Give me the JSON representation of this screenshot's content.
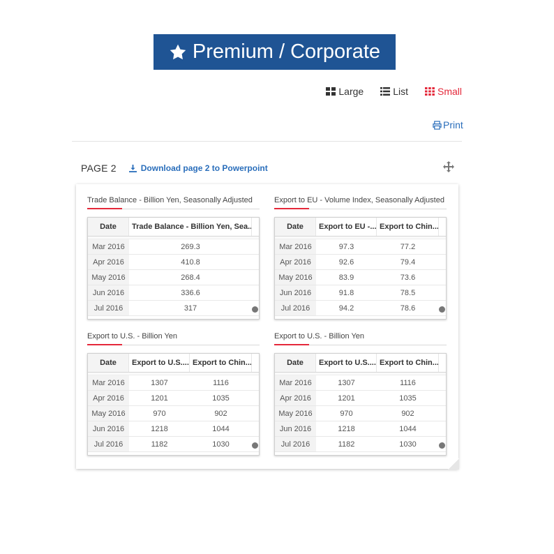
{
  "banner": {
    "text": "Premium / Corporate",
    "icon": "star-icon",
    "bg": "#1f5494"
  },
  "view_options": [
    {
      "label": "Large",
      "icon": "grid-large-icon",
      "active": false
    },
    {
      "label": "List",
      "icon": "list-icon",
      "active": false
    },
    {
      "label": "Small",
      "icon": "grid-small-icon",
      "active": true
    }
  ],
  "print_label": "Print",
  "page": {
    "label": "PAGE 2",
    "download_label": "Download page 2 to Powerpoint"
  },
  "colors": {
    "accent": "#e4283a",
    "link": "#2a6ebb"
  },
  "widgets": [
    {
      "title": "Trade Balance - Billion Yen, Seasonally Adjusted",
      "headers": [
        "Date",
        "Trade Balance - Billion Yen, Sea..."
      ],
      "rows": [
        [
          "Mar 2016",
          "269.3"
        ],
        [
          "Apr 2016",
          "410.8"
        ],
        [
          "May 2016",
          "268.4"
        ],
        [
          "Jun 2016",
          "336.6"
        ],
        [
          "Jul 2016",
          "317"
        ]
      ]
    },
    {
      "title": "Export to EU - Volume Index, Seasonally Adjusted",
      "headers": [
        "Date",
        "Export to EU -...",
        "Export to Chin..."
      ],
      "rows": [
        [
          "Mar 2016",
          "97.3",
          "77.2"
        ],
        [
          "Apr 2016",
          "92.6",
          "79.4"
        ],
        [
          "May 2016",
          "83.9",
          "73.6"
        ],
        [
          "Jun 2016",
          "91.8",
          "78.5"
        ],
        [
          "Jul 2016",
          "94.2",
          "78.6"
        ]
      ]
    },
    {
      "title": "Export to U.S. - Billion Yen",
      "headers": [
        "Date",
        "Export to U.S....",
        "Export to Chin..."
      ],
      "rows": [
        [
          "Mar 2016",
          "1307",
          "1116"
        ],
        [
          "Apr 2016",
          "1201",
          "1035"
        ],
        [
          "May 2016",
          "970",
          "902"
        ],
        [
          "Jun 2016",
          "1218",
          "1044"
        ],
        [
          "Jul 2016",
          "1182",
          "1030"
        ]
      ]
    },
    {
      "title": "Export to U.S. - Billion Yen",
      "headers": [
        "Date",
        "Export to U.S....",
        "Export to Chin..."
      ],
      "rows": [
        [
          "Mar 2016",
          "1307",
          "1116"
        ],
        [
          "Apr 2016",
          "1201",
          "1035"
        ],
        [
          "May 2016",
          "970",
          "902"
        ],
        [
          "Jun 2016",
          "1218",
          "1044"
        ],
        [
          "Jul 2016",
          "1182",
          "1030"
        ]
      ]
    }
  ]
}
